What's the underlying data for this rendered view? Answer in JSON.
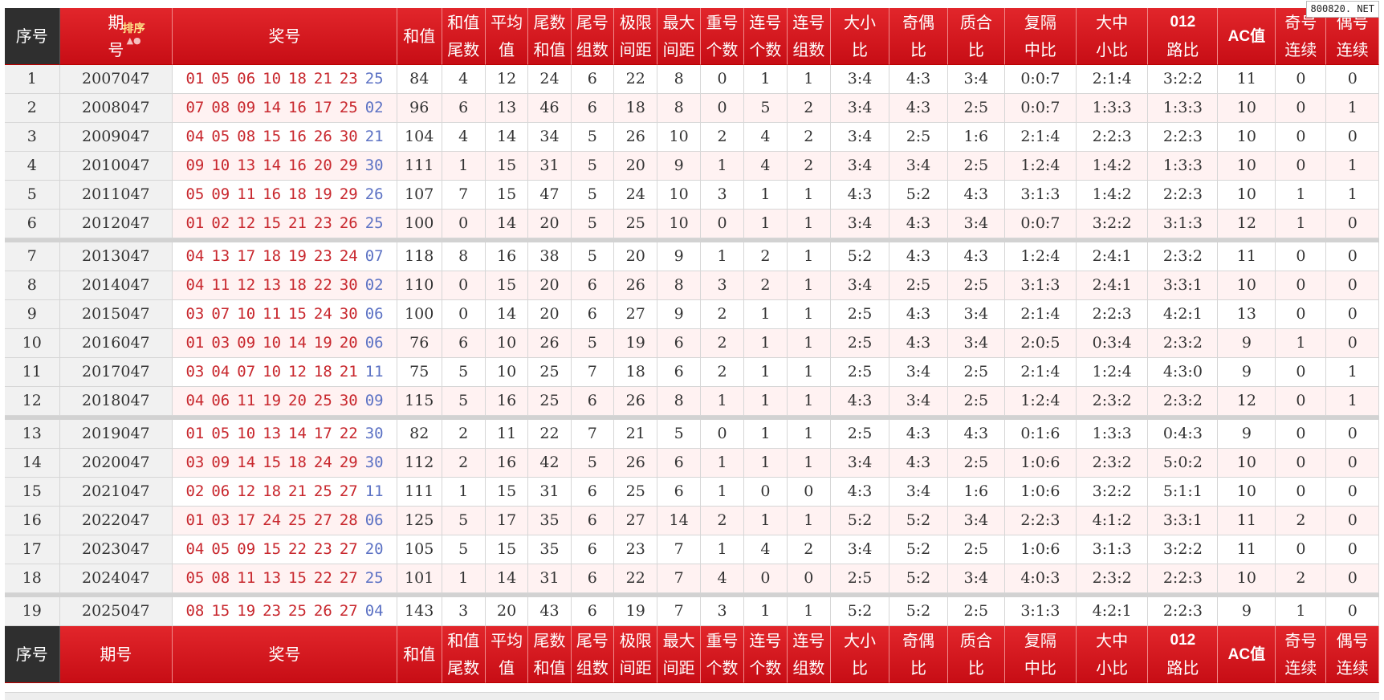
{
  "watermark": "800820. NET",
  "headers": {
    "idx": "序号",
    "issue_c1": "期",
    "issue_c2": "号",
    "sort_label": "排序",
    "sort_arrows": "▲●",
    "numbers": "奖号",
    "sum": "和值",
    "multi": [
      {
        "key": "sum_tail",
        "l1": "和值",
        "l2": "尾数"
      },
      {
        "key": "avg",
        "l1": "平均",
        "l2": "值"
      },
      {
        "key": "tail_sum",
        "l1": "尾数",
        "l2": "和值"
      },
      {
        "key": "tail_groups",
        "l1": "尾号",
        "l2": "组数"
      },
      {
        "key": "range",
        "l1": "极限",
        "l2": "间距"
      },
      {
        "key": "max_gap",
        "l1": "最大",
        "l2": "间距"
      },
      {
        "key": "repeat",
        "l1": "重号",
        "l2": "个数"
      },
      {
        "key": "consec_count",
        "l1": "连号",
        "l2": "个数"
      },
      {
        "key": "consec_groups",
        "l1": "连号",
        "l2": "组数"
      },
      {
        "key": "big_small",
        "l1": "大小",
        "l2": "比"
      },
      {
        "key": "odd_even",
        "l1": "奇偶",
        "l2": "比"
      },
      {
        "key": "prime",
        "l1": "质合",
        "l2": "比"
      },
      {
        "key": "interval",
        "l1": "复隔",
        "l2": "中比"
      },
      {
        "key": "bms",
        "l1": "大中",
        "l2": "小比"
      },
      {
        "key": "road",
        "l1": "012",
        "l2": "路比"
      }
    ],
    "ac": "AC值",
    "odd_run": {
      "l1": "奇号",
      "l2": "连续"
    },
    "even_run": {
      "l1": "偶号",
      "l2": "连续"
    },
    "footer_issue": "期号"
  },
  "rows": [
    {
      "idx": "1",
      "issue": "2007047",
      "nums": [
        "01",
        "05",
        "06",
        "10",
        "18",
        "21",
        "23"
      ],
      "blue": "25",
      "sum": "84",
      "sum_tail": "4",
      "avg": "12",
      "tail_sum": "24",
      "tail_groups": "6",
      "range": "22",
      "max_gap": "8",
      "repeat": "0",
      "consec_count": "1",
      "consec_groups": "1",
      "big_small": "3:4",
      "odd_even": "4:3",
      "prime": "3:4",
      "interval": "0:0:7",
      "bms": "2:1:4",
      "road": "3:2:2",
      "ac": "11",
      "odd_run": "0",
      "even_run": "0"
    },
    {
      "idx": "2",
      "issue": "2008047",
      "nums": [
        "07",
        "08",
        "09",
        "14",
        "16",
        "17",
        "25"
      ],
      "blue": "02",
      "sum": "96",
      "sum_tail": "6",
      "avg": "13",
      "tail_sum": "46",
      "tail_groups": "6",
      "range": "18",
      "max_gap": "8",
      "repeat": "0",
      "consec_count": "5",
      "consec_groups": "2",
      "big_small": "3:4",
      "odd_even": "4:3",
      "prime": "2:5",
      "interval": "0:0:7",
      "bms": "1:3:3",
      "road": "1:3:3",
      "ac": "10",
      "odd_run": "0",
      "even_run": "1"
    },
    {
      "idx": "3",
      "issue": "2009047",
      "nums": [
        "04",
        "05",
        "08",
        "15",
        "16",
        "26",
        "30"
      ],
      "blue": "21",
      "sum": "104",
      "sum_tail": "4",
      "avg": "14",
      "tail_sum": "34",
      "tail_groups": "5",
      "range": "26",
      "max_gap": "10",
      "repeat": "2",
      "consec_count": "4",
      "consec_groups": "2",
      "big_small": "3:4",
      "odd_even": "2:5",
      "prime": "1:6",
      "interval": "2:1:4",
      "bms": "2:2:3",
      "road": "2:2:3",
      "ac": "10",
      "odd_run": "0",
      "even_run": "0"
    },
    {
      "idx": "4",
      "issue": "2010047",
      "nums": [
        "09",
        "10",
        "13",
        "14",
        "16",
        "20",
        "29"
      ],
      "blue": "30",
      "sum": "111",
      "sum_tail": "1",
      "avg": "15",
      "tail_sum": "31",
      "tail_groups": "5",
      "range": "20",
      "max_gap": "9",
      "repeat": "1",
      "consec_count": "4",
      "consec_groups": "2",
      "big_small": "3:4",
      "odd_even": "3:4",
      "prime": "2:5",
      "interval": "1:2:4",
      "bms": "1:4:2",
      "road": "1:3:3",
      "ac": "10",
      "odd_run": "0",
      "even_run": "1"
    },
    {
      "idx": "5",
      "issue": "2011047",
      "nums": [
        "05",
        "09",
        "11",
        "16",
        "18",
        "19",
        "29"
      ],
      "blue": "26",
      "sum": "107",
      "sum_tail": "7",
      "avg": "15",
      "tail_sum": "47",
      "tail_groups": "5",
      "range": "24",
      "max_gap": "10",
      "repeat": "3",
      "consec_count": "1",
      "consec_groups": "1",
      "big_small": "4:3",
      "odd_even": "5:2",
      "prime": "4:3",
      "interval": "3:1:3",
      "bms": "1:4:2",
      "road": "2:2:3",
      "ac": "10",
      "odd_run": "1",
      "even_run": "1"
    },
    {
      "idx": "6",
      "issue": "2012047",
      "nums": [
        "01",
        "02",
        "12",
        "15",
        "21",
        "23",
        "26"
      ],
      "blue": "25",
      "sum": "100",
      "sum_tail": "0",
      "avg": "14",
      "tail_sum": "20",
      "tail_groups": "5",
      "range": "25",
      "max_gap": "10",
      "repeat": "0",
      "consec_count": "1",
      "consec_groups": "1",
      "big_small": "3:4",
      "odd_even": "4:3",
      "prime": "3:4",
      "interval": "0:0:7",
      "bms": "3:2:2",
      "road": "3:1:3",
      "ac": "12",
      "odd_run": "1",
      "even_run": "0"
    },
    {
      "idx": "7",
      "issue": "2013047",
      "nums": [
        "04",
        "13",
        "17",
        "18",
        "19",
        "23",
        "24"
      ],
      "blue": "07",
      "sum": "118",
      "sum_tail": "8",
      "avg": "16",
      "tail_sum": "38",
      "tail_groups": "5",
      "range": "20",
      "max_gap": "9",
      "repeat": "1",
      "consec_count": "2",
      "consec_groups": "1",
      "big_small": "5:2",
      "odd_even": "4:3",
      "prime": "4:3",
      "interval": "1:2:4",
      "bms": "2:4:1",
      "road": "2:3:2",
      "ac": "11",
      "odd_run": "0",
      "even_run": "0"
    },
    {
      "idx": "8",
      "issue": "2014047",
      "nums": [
        "04",
        "11",
        "12",
        "13",
        "18",
        "22",
        "30"
      ],
      "blue": "02",
      "sum": "110",
      "sum_tail": "0",
      "avg": "15",
      "tail_sum": "20",
      "tail_groups": "6",
      "range": "26",
      "max_gap": "8",
      "repeat": "3",
      "consec_count": "2",
      "consec_groups": "1",
      "big_small": "3:4",
      "odd_even": "2:5",
      "prime": "2:5",
      "interval": "3:1:3",
      "bms": "2:4:1",
      "road": "3:3:1",
      "ac": "10",
      "odd_run": "0",
      "even_run": "0"
    },
    {
      "idx": "9",
      "issue": "2015047",
      "nums": [
        "03",
        "07",
        "10",
        "11",
        "15",
        "24",
        "30"
      ],
      "blue": "06",
      "sum": "100",
      "sum_tail": "0",
      "avg": "14",
      "tail_sum": "20",
      "tail_groups": "6",
      "range": "27",
      "max_gap": "9",
      "repeat": "2",
      "consec_count": "1",
      "consec_groups": "1",
      "big_small": "2:5",
      "odd_even": "4:3",
      "prime": "3:4",
      "interval": "2:1:4",
      "bms": "2:2:3",
      "road": "4:2:1",
      "ac": "13",
      "odd_run": "0",
      "even_run": "0"
    },
    {
      "idx": "10",
      "issue": "2016047",
      "nums": [
        "01",
        "03",
        "09",
        "10",
        "14",
        "19",
        "20"
      ],
      "blue": "06",
      "sum": "76",
      "sum_tail": "6",
      "avg": "10",
      "tail_sum": "26",
      "tail_groups": "5",
      "range": "19",
      "max_gap": "6",
      "repeat": "2",
      "consec_count": "1",
      "consec_groups": "1",
      "big_small": "2:5",
      "odd_even": "4:3",
      "prime": "3:4",
      "interval": "2:0:5",
      "bms": "0:3:4",
      "road": "2:3:2",
      "ac": "9",
      "odd_run": "1",
      "even_run": "0"
    },
    {
      "idx": "11",
      "issue": "2017047",
      "nums": [
        "03",
        "04",
        "07",
        "10",
        "12",
        "18",
        "21"
      ],
      "blue": "11",
      "sum": "75",
      "sum_tail": "5",
      "avg": "10",
      "tail_sum": "25",
      "tail_groups": "7",
      "range": "18",
      "max_gap": "6",
      "repeat": "2",
      "consec_count": "1",
      "consec_groups": "1",
      "big_small": "2:5",
      "odd_even": "3:4",
      "prime": "2:5",
      "interval": "2:1:4",
      "bms": "1:2:4",
      "road": "4:3:0",
      "ac": "9",
      "odd_run": "0",
      "even_run": "1"
    },
    {
      "idx": "12",
      "issue": "2018047",
      "nums": [
        "04",
        "06",
        "11",
        "19",
        "20",
        "25",
        "30"
      ],
      "blue": "09",
      "sum": "115",
      "sum_tail": "5",
      "avg": "16",
      "tail_sum": "25",
      "tail_groups": "6",
      "range": "26",
      "max_gap": "8",
      "repeat": "1",
      "consec_count": "1",
      "consec_groups": "1",
      "big_small": "4:3",
      "odd_even": "3:4",
      "prime": "2:5",
      "interval": "1:2:4",
      "bms": "2:3:2",
      "road": "2:3:2",
      "ac": "12",
      "odd_run": "0",
      "even_run": "1"
    },
    {
      "idx": "13",
      "issue": "2019047",
      "nums": [
        "01",
        "05",
        "10",
        "13",
        "14",
        "17",
        "22"
      ],
      "blue": "30",
      "sum": "82",
      "sum_tail": "2",
      "avg": "11",
      "tail_sum": "22",
      "tail_groups": "7",
      "range": "21",
      "max_gap": "5",
      "repeat": "0",
      "consec_count": "1",
      "consec_groups": "1",
      "big_small": "2:5",
      "odd_even": "4:3",
      "prime": "4:3",
      "interval": "0:1:6",
      "bms": "1:3:3",
      "road": "0:4:3",
      "ac": "9",
      "odd_run": "0",
      "even_run": "0"
    },
    {
      "idx": "14",
      "issue": "2020047",
      "nums": [
        "03",
        "09",
        "14",
        "15",
        "18",
        "24",
        "29"
      ],
      "blue": "30",
      "sum": "112",
      "sum_tail": "2",
      "avg": "16",
      "tail_sum": "42",
      "tail_groups": "5",
      "range": "26",
      "max_gap": "6",
      "repeat": "1",
      "consec_count": "1",
      "consec_groups": "1",
      "big_small": "3:4",
      "odd_even": "4:3",
      "prime": "2:5",
      "interval": "1:0:6",
      "bms": "2:3:2",
      "road": "5:0:2",
      "ac": "10",
      "odd_run": "0",
      "even_run": "0"
    },
    {
      "idx": "15",
      "issue": "2021047",
      "nums": [
        "02",
        "06",
        "12",
        "18",
        "21",
        "25",
        "27"
      ],
      "blue": "11",
      "sum": "111",
      "sum_tail": "1",
      "avg": "15",
      "tail_sum": "31",
      "tail_groups": "6",
      "range": "25",
      "max_gap": "6",
      "repeat": "1",
      "consec_count": "0",
      "consec_groups": "0",
      "big_small": "4:3",
      "odd_even": "3:4",
      "prime": "1:6",
      "interval": "1:0:6",
      "bms": "3:2:2",
      "road": "5:1:1",
      "ac": "10",
      "odd_run": "0",
      "even_run": "0"
    },
    {
      "idx": "16",
      "issue": "2022047",
      "nums": [
        "01",
        "03",
        "17",
        "24",
        "25",
        "27",
        "28"
      ],
      "blue": "06",
      "sum": "125",
      "sum_tail": "5",
      "avg": "17",
      "tail_sum": "35",
      "tail_groups": "6",
      "range": "27",
      "max_gap": "14",
      "repeat": "2",
      "consec_count": "1",
      "consec_groups": "1",
      "big_small": "5:2",
      "odd_even": "5:2",
      "prime": "3:4",
      "interval": "2:2:3",
      "bms": "4:1:2",
      "road": "3:3:1",
      "ac": "11",
      "odd_run": "2",
      "even_run": "0"
    },
    {
      "idx": "17",
      "issue": "2023047",
      "nums": [
        "04",
        "05",
        "09",
        "15",
        "22",
        "23",
        "27"
      ],
      "blue": "20",
      "sum": "105",
      "sum_tail": "5",
      "avg": "15",
      "tail_sum": "35",
      "tail_groups": "6",
      "range": "23",
      "max_gap": "7",
      "repeat": "1",
      "consec_count": "4",
      "consec_groups": "2",
      "big_small": "3:4",
      "odd_even": "5:2",
      "prime": "2:5",
      "interval": "1:0:6",
      "bms": "3:1:3",
      "road": "3:2:2",
      "ac": "11",
      "odd_run": "0",
      "even_run": "0"
    },
    {
      "idx": "18",
      "issue": "2024047",
      "nums": [
        "05",
        "08",
        "11",
        "13",
        "15",
        "22",
        "27"
      ],
      "blue": "25",
      "sum": "101",
      "sum_tail": "1",
      "avg": "14",
      "tail_sum": "31",
      "tail_groups": "6",
      "range": "22",
      "max_gap": "7",
      "repeat": "4",
      "consec_count": "0",
      "consec_groups": "0",
      "big_small": "2:5",
      "odd_even": "5:2",
      "prime": "3:4",
      "interval": "4:0:3",
      "bms": "2:3:2",
      "road": "2:2:3",
      "ac": "10",
      "odd_run": "2",
      "even_run": "0"
    },
    {
      "idx": "19",
      "issue": "2025047",
      "nums": [
        "08",
        "15",
        "19",
        "23",
        "25",
        "26",
        "27"
      ],
      "blue": "04",
      "sum": "143",
      "sum_tail": "3",
      "avg": "20",
      "tail_sum": "43",
      "tail_groups": "6",
      "range": "19",
      "max_gap": "7",
      "repeat": "3",
      "consec_count": "1",
      "consec_groups": "1",
      "big_small": "5:2",
      "odd_even": "5:2",
      "prime": "2:5",
      "interval": "3:1:3",
      "bms": "4:2:1",
      "road": "2:2:3",
      "ac": "9",
      "odd_run": "1",
      "even_run": "0"
    }
  ],
  "colors": {
    "header_red": "#d9141b",
    "header_dark": "#2f2f2f",
    "red_number": "#c8272d",
    "blue_number": "#5c72c4",
    "orange": "#e37a10",
    "green": "#2a9a2a",
    "row_pink": "#fff2f2"
  }
}
